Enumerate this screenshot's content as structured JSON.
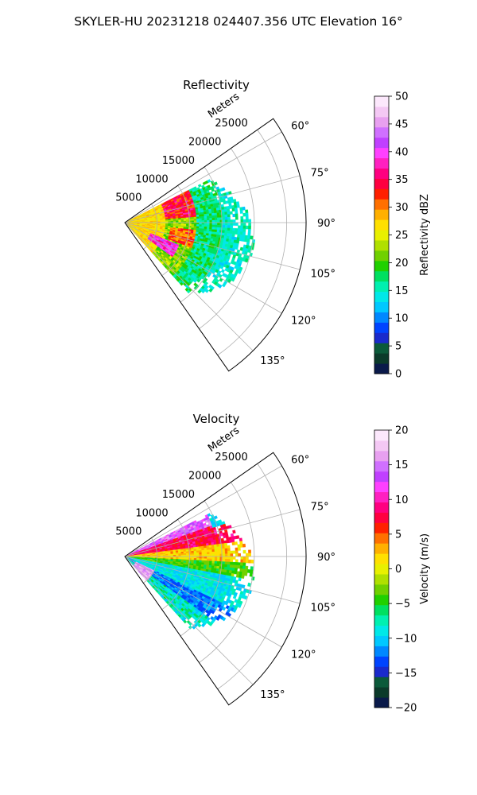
{
  "figure": {
    "title": "SKYLER-HU  20231218  024407.356 UTC Elevation 16°"
  },
  "chart_data": [
    {
      "type": "heatmap",
      "title": "Reflectivity",
      "range_label": "Meters",
      "range_ticks": [
        5000,
        10000,
        15000,
        20000,
        25000
      ],
      "range_tick_labels": [
        "5000",
        "10000",
        "15000",
        "20000",
        "25000"
      ],
      "range_max": 28000,
      "azimuth_span": [
        55,
        145
      ],
      "azimuth_ticks": [
        60,
        75,
        90,
        105,
        120,
        135
      ],
      "azimuth_tick_labels": [
        "60°",
        "75°",
        "90°",
        "105°",
        "120°",
        "135°"
      ],
      "grid": true,
      "colorbar": {
        "label": "Reflectivity dBZ",
        "vmin": 0,
        "vmax": 50,
        "ticks": [
          0,
          5,
          10,
          15,
          20,
          25,
          30,
          35,
          40,
          45,
          50
        ],
        "tick_labels": [
          "0",
          "5",
          "10",
          "15",
          "20",
          "25",
          "30",
          "35",
          "40",
          "45",
          "50"
        ],
        "colors": [
          "#0a1a4a",
          "#0b3a2a",
          "#0b5a3a",
          "#1a2acc",
          "#0044ff",
          "#0088ff",
          "#00c8ff",
          "#00e8e8",
          "#00f0b0",
          "#00e060",
          "#20d000",
          "#70d000",
          "#b0e000",
          "#e8f000",
          "#ffe000",
          "#ffb000",
          "#ff7000",
          "#ff2000",
          "#ff0040",
          "#ff0080",
          "#ff20c0",
          "#ff40ff",
          "#c040ff",
          "#d070ff",
          "#e8a0f0",
          "#f4c8f4",
          "#fce8fc"
        ]
      },
      "data_coverage": {
        "azimuth": [
          63,
          138
        ],
        "range_max": 20000
      }
    },
    {
      "type": "heatmap",
      "title": "Velocity",
      "range_label": "Meters",
      "range_ticks": [
        5000,
        10000,
        15000,
        20000,
        25000
      ],
      "range_tick_labels": [
        "5000",
        "10000",
        "15000",
        "20000",
        "25000"
      ],
      "range_max": 28000,
      "azimuth_span": [
        55,
        145
      ],
      "azimuth_ticks": [
        60,
        75,
        90,
        105,
        120,
        135
      ],
      "azimuth_tick_labels": [
        "60°",
        "75°",
        "90°",
        "105°",
        "120°",
        "135°"
      ],
      "grid": true,
      "colorbar": {
        "label": "Velocity (m/s)",
        "vmin": -20,
        "vmax": 20,
        "ticks": [
          -20,
          -15,
          -10,
          -5,
          0,
          5,
          10,
          15,
          20
        ],
        "tick_labels": [
          "−20",
          "−15",
          "−10",
          "−5",
          "0",
          "5",
          "10",
          "15",
          "20"
        ],
        "colors": [
          "#0a1a4a",
          "#0b3a2a",
          "#0b5a3a",
          "#1a2acc",
          "#0044ff",
          "#0088ff",
          "#00c8ff",
          "#00e8e8",
          "#00f0b0",
          "#00e060",
          "#20d000",
          "#70d000",
          "#b0e000",
          "#e8f000",
          "#ffe000",
          "#ffb000",
          "#ff7000",
          "#ff2000",
          "#ff0040",
          "#ff0080",
          "#ff20c0",
          "#ff40ff",
          "#c040ff",
          "#d070ff",
          "#e8a0f0",
          "#f4c8f4",
          "#fce8fc"
        ]
      },
      "data_coverage": {
        "azimuth": [
          63,
          138
        ],
        "range_max": 20000
      }
    }
  ]
}
